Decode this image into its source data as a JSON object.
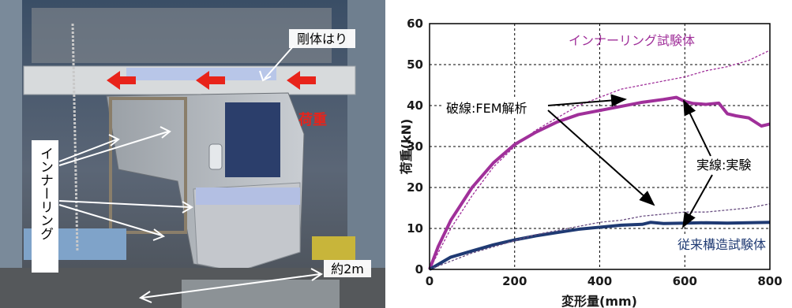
{
  "photo": {
    "labels": {
      "beam": "剛体はり",
      "load": "荷重",
      "inner_ring": "インナーリング",
      "dimension": "約2m"
    },
    "colors": {
      "load_arrow": "#e8231a",
      "load_text": "#e8231a"
    }
  },
  "chart_data": {
    "type": "line",
    "xlabel": "変形量(mm)",
    "ylabel": "荷重(kN)",
    "xlim": [
      0,
      800
    ],
    "ylim": [
      0,
      60
    ],
    "xticks": [
      0,
      200,
      400,
      600,
      800
    ],
    "yticks": [
      0,
      10,
      20,
      30,
      40,
      50,
      60
    ],
    "grid": true,
    "annotations": {
      "inner_ring_specimen": "インナーリング試験体",
      "fem_dashed": "破線:FEM解析",
      "experiment_solid": "実線:実験",
      "conventional_specimen": "従来構造試験体"
    },
    "series": [
      {
        "style": "solid",
        "color": "#a0309a",
        "x": [
          0,
          20,
          50,
          100,
          150,
          200,
          250,
          300,
          350,
          400,
          450,
          500,
          550,
          580,
          600,
          620,
          650,
          680,
          700,
          720,
          750,
          780,
          800
        ],
        "y": [
          0,
          5.5,
          12,
          20,
          26,
          30.5,
          33.5,
          36,
          37.8,
          38.8,
          39.8,
          40.8,
          41.5,
          42,
          41,
          40.5,
          40.3,
          40.6,
          38,
          37.5,
          37,
          35,
          35.5
        ]
      },
      {
        "style": "dashed",
        "color": "#a0309a",
        "x": [
          0,
          20,
          50,
          100,
          150,
          200,
          250,
          300,
          350,
          400,
          450,
          500,
          550,
          600,
          650,
          700,
          750,
          800
        ],
        "y": [
          0,
          4,
          10,
          18,
          25,
          30,
          34,
          37,
          40,
          42,
          44,
          45,
          46,
          47,
          48.5,
          49.5,
          51,
          53.5
        ]
      },
      {
        "style": "solid",
        "color": "#1f3a73",
        "x": [
          0,
          50,
          100,
          150,
          200,
          250,
          300,
          350,
          400,
          450,
          500,
          520,
          550,
          600,
          650,
          700,
          750,
          800
        ],
        "y": [
          0,
          3,
          4.5,
          6,
          7.2,
          8.2,
          9,
          9.8,
          10.3,
          10.8,
          11,
          11.5,
          11.2,
          11.3,
          11.4,
          11.3,
          11.4,
          11.5
        ]
      },
      {
        "style": "dashed",
        "color": "#6a4f82",
        "x": [
          0,
          50,
          100,
          150,
          200,
          250,
          300,
          350,
          400,
          450,
          500,
          550,
          600,
          650,
          700,
          750,
          800
        ],
        "y": [
          0,
          2,
          4,
          5.5,
          7,
          8.5,
          9.5,
          10.5,
          11.5,
          12,
          13,
          13.5,
          14,
          14,
          14.5,
          15,
          16
        ]
      }
    ]
  }
}
